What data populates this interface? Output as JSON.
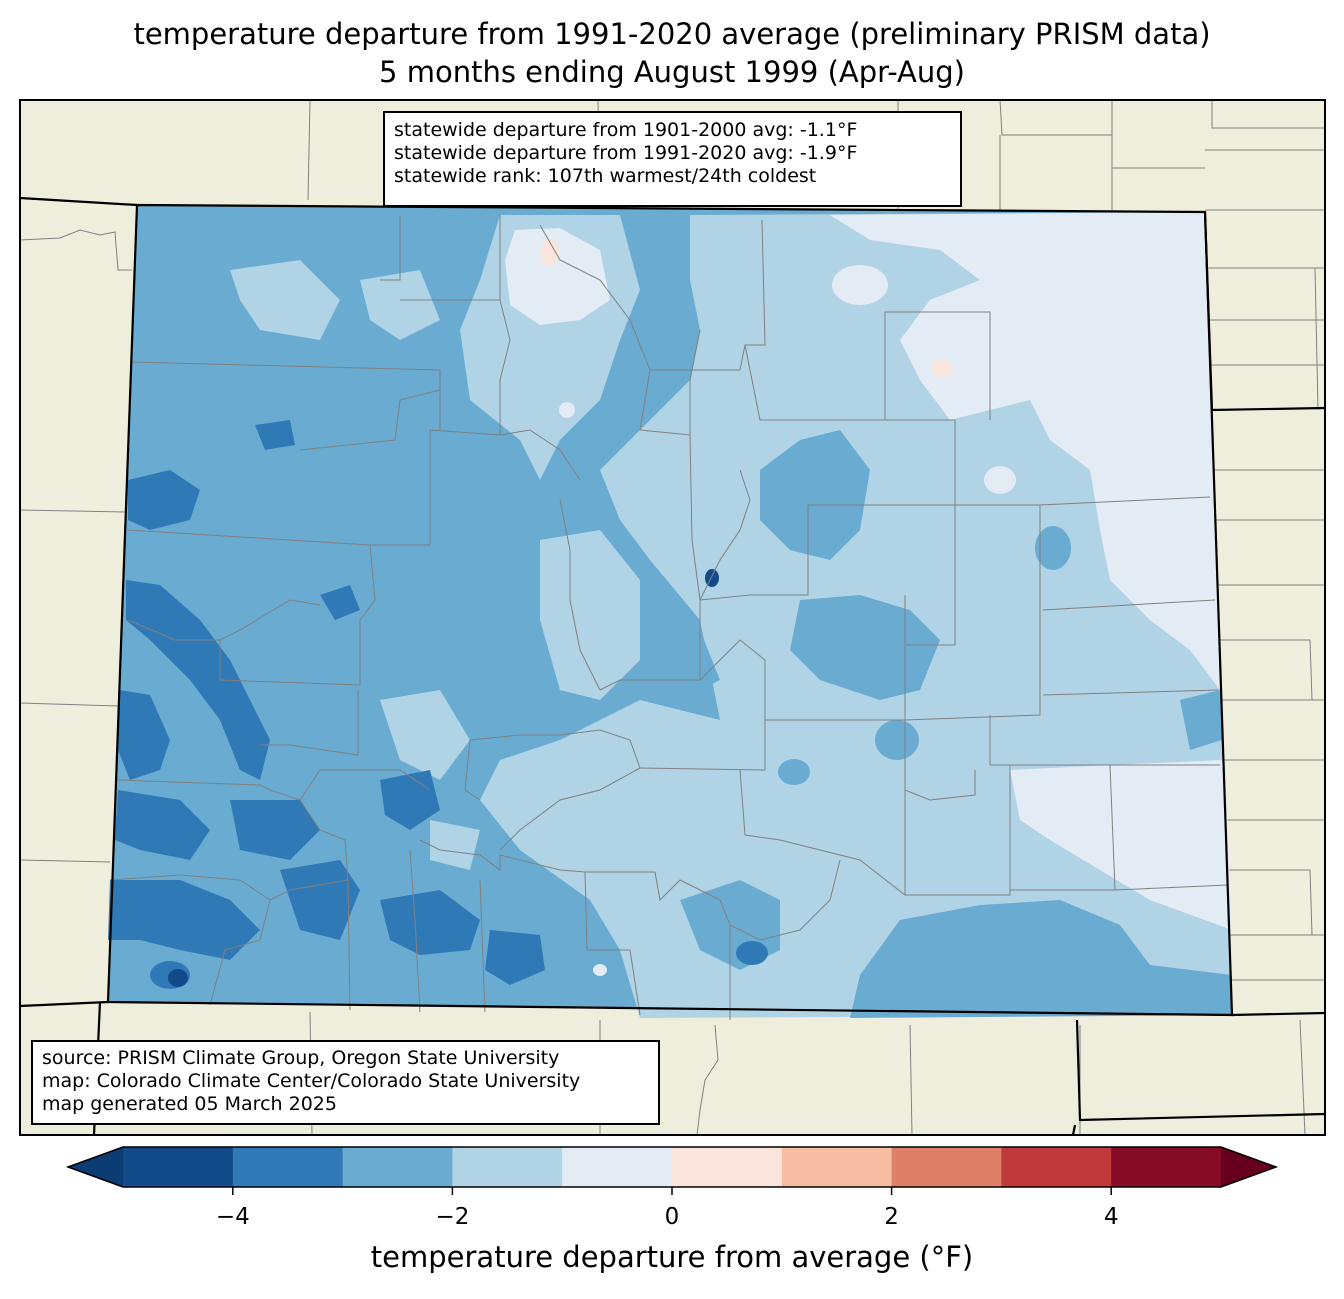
{
  "title": {
    "line1": "temperature departure from 1991-2020 average (preliminary PRISM data)",
    "line2": "5 months ending August 1999 (Apr-Aug)"
  },
  "stats": {
    "line1": "statewide departure from 1901-2000 avg: -1.1°F",
    "line2": "statewide departure from 1991-2020 avg: -1.9°F",
    "line3": "statewide rank: 107th warmest/24th coldest"
  },
  "source": {
    "line1": "source: PRISM Climate Group, Oregon State University",
    "line2": "map: Colorado Climate Center/Colorado State University",
    "line3": "map generated 05 March 2025"
  },
  "colorbar": {
    "label": "temperature departure from average (°F)",
    "min": -5,
    "max": 5,
    "ticks": [
      {
        "value": -4,
        "label": "−4"
      },
      {
        "value": -2,
        "label": "−2"
      },
      {
        "value": 0,
        "label": "0"
      },
      {
        "value": 2,
        "label": "2"
      },
      {
        "value": 4,
        "label": "4"
      }
    ],
    "colors": [
      "#0b3c74",
      "#134a8a",
      "#2f79b7",
      "#6aabd1",
      "#b0d3e6",
      "#e3ecf4",
      "#f9e5dc",
      "#f8bca2",
      "#e07f68",
      "#c03a3c",
      "#870d26",
      "#67001f"
    ]
  },
  "map_colors": {
    "background": "#efeedd",
    "state_border": "#000000",
    "county_line": "#808080"
  }
}
